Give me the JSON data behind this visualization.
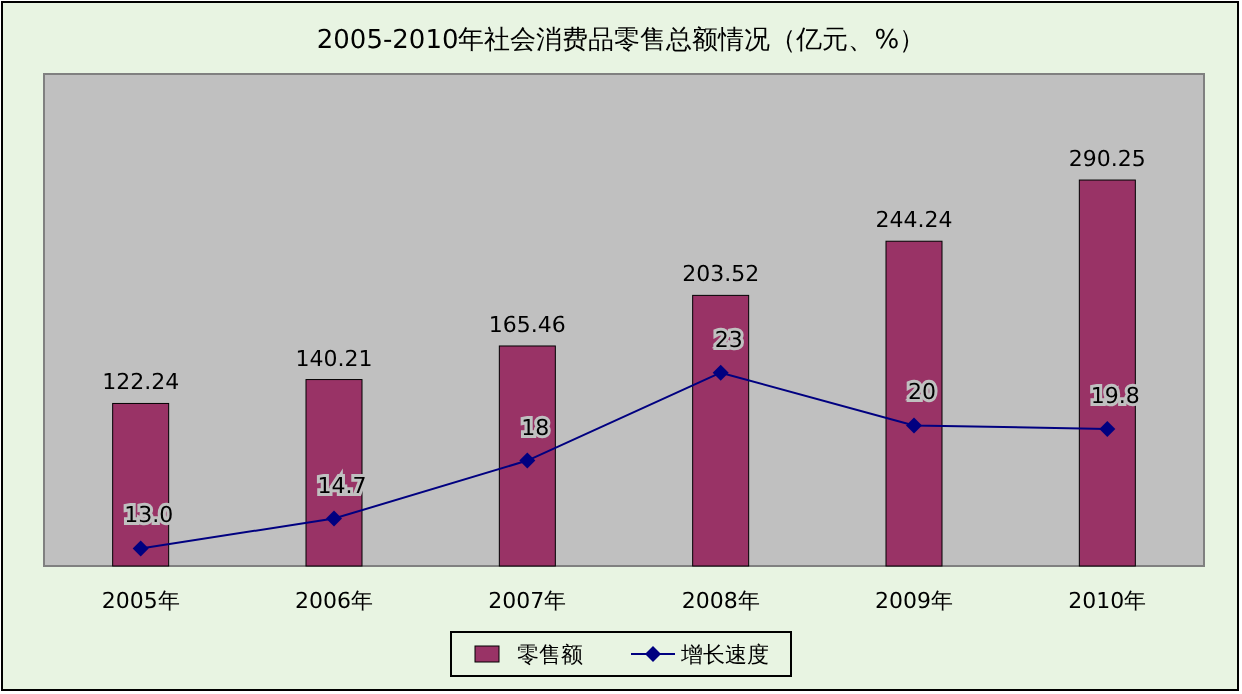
{
  "chart_data": {
    "type": "bar",
    "title": "2005-2010年社会消费品零售总额情况（亿元、%）",
    "categories": [
      "2005年",
      "2006年",
      "2007年",
      "2008年",
      "2009年",
      "2010年"
    ],
    "series": [
      {
        "name": "零售额",
        "color": "#993366",
        "values": [
          122.24,
          140.21,
          165.46,
          203.52,
          244.24,
          290.25
        ],
        "value_labels": [
          "122.24",
          "140.21",
          "165.46",
          "203.52",
          "244.24",
          "290.25"
        ]
      },
      {
        "name": "增长速度",
        "type": "line",
        "axis": "y2",
        "color": "#000080",
        "values": [
          13.0,
          14.7,
          18,
          23,
          20,
          19.8
        ],
        "value_labels": [
          "13.0",
          "14.7",
          "18",
          "23",
          "20",
          "19.8"
        ]
      }
    ],
    "ylim": [
      0,
      370
    ],
    "y2lim": [
      12,
      40
    ],
    "tick_labels": "x",
    "legend": "bottom",
    "marker": "diamond",
    "grid": false
  }
}
